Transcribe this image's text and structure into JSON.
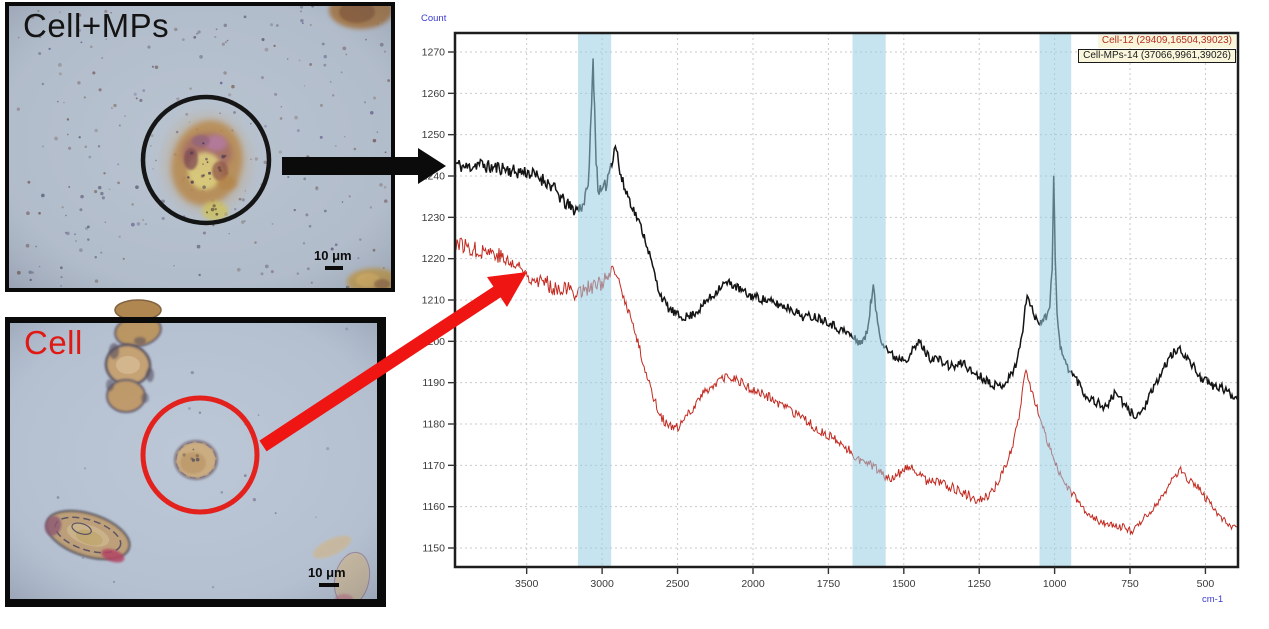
{
  "panels": {
    "cell_mps": {
      "label": "Cell+MPs",
      "scale_bar_label": "10 μm"
    },
    "cell": {
      "label": "Cell",
      "scale_bar_label": "10 μm"
    }
  },
  "chart": {
    "y_axis_title": "Count",
    "x_axis_unit": "cm-1",
    "legend": [
      {
        "label": "Cell-12 (29409,16504,39023)",
        "color": "#b43020",
        "boxed": false
      },
      {
        "label": "Cell-MPs-14 (37066,9961,39026)",
        "color": "#1a1a1a",
        "boxed": true
      }
    ],
    "legend_bg": "#faf6dc",
    "band_color": "rgba(152,206,227,0.55)",
    "accent_red": "#e41712",
    "accent_black": "#0b0b0b"
  },
  "chart_data": {
    "type": "line",
    "title": "",
    "xlabel": "cm-1",
    "ylabel": "Count",
    "x_axis": {
      "unit": "cm-1",
      "direction": "decreasing",
      "dual_scale_break": 2000,
      "xlim": [
        3975,
        392
      ]
    },
    "ylim": [
      1145,
      1275
    ],
    "x_ticks": [
      3500,
      3000,
      2500,
      2000,
      1750,
      1500,
      1250,
      1000,
      750,
      500
    ],
    "y_ticks": [
      1270,
      1260,
      1250,
      1240,
      1230,
      1220,
      1210,
      1200,
      1190,
      1180,
      1170,
      1160,
      1150
    ],
    "grid": "dashed",
    "legend_position": "top-right",
    "highlight_bands": [
      [
        3160,
        2940
      ],
      [
        1670,
        1560
      ],
      [
        1050,
        945
      ]
    ],
    "series": [
      {
        "name": "Cell-12",
        "color": "#c22a20",
        "width": 1.0,
        "noise": [
          [
            3975,
            2890,
            2.0
          ],
          [
            2889,
            1150,
            1.2
          ],
          [
            1149,
            392,
            0.9
          ]
        ],
        "points": [
          [
            3975,
            1224
          ],
          [
            3900,
            1223
          ],
          [
            3830,
            1222
          ],
          [
            3760,
            1222
          ],
          [
            3690,
            1221
          ],
          [
            3620,
            1219
          ],
          [
            3550,
            1218
          ],
          [
            3490,
            1216
          ],
          [
            3430,
            1215
          ],
          [
            3370,
            1214
          ],
          [
            3310,
            1213
          ],
          [
            3250,
            1213
          ],
          [
            3195,
            1212
          ],
          [
            3150,
            1212
          ],
          [
            3105,
            1213
          ],
          [
            3060,
            1213
          ],
          [
            3015,
            1214
          ],
          [
            2975,
            1215
          ],
          [
            2940,
            1216
          ],
          [
            2915,
            1217
          ],
          [
            2895,
            1215
          ],
          [
            2870,
            1212
          ],
          [
            2842,
            1209
          ],
          [
            2812,
            1206
          ],
          [
            2782,
            1202
          ],
          [
            2750,
            1198
          ],
          [
            2715,
            1193
          ],
          [
            2680,
            1189
          ],
          [
            2645,
            1185
          ],
          [
            2610,
            1182
          ],
          [
            2575,
            1180
          ],
          [
            2540,
            1179
          ],
          [
            2505,
            1179
          ],
          [
            2470,
            1180
          ],
          [
            2435,
            1182
          ],
          [
            2398,
            1184
          ],
          [
            2358,
            1186
          ],
          [
            2318,
            1188
          ],
          [
            2278,
            1189
          ],
          [
            2238,
            1190
          ],
          [
            2198,
            1191
          ],
          [
            2158,
            1191
          ],
          [
            2118,
            1191
          ],
          [
            2078,
            1190
          ],
          [
            2038,
            1189
          ],
          [
            2000,
            1188
          ],
          [
            1958,
            1187
          ],
          [
            1916,
            1185
          ],
          [
            1874,
            1183
          ],
          [
            1832,
            1181
          ],
          [
            1790,
            1179
          ],
          [
            1748,
            1177
          ],
          [
            1706,
            1175
          ],
          [
            1672,
            1173
          ],
          [
            1640,
            1171
          ],
          [
            1608,
            1170
          ],
          [
            1576,
            1168
          ],
          [
            1548,
            1167
          ],
          [
            1520,
            1168
          ],
          [
            1495,
            1169
          ],
          [
            1470,
            1169
          ],
          [
            1442,
            1167
          ],
          [
            1412,
            1166
          ],
          [
            1382,
            1166
          ],
          [
            1352,
            1165
          ],
          [
            1322,
            1164
          ],
          [
            1292,
            1163
          ],
          [
            1262,
            1162
          ],
          [
            1232,
            1162
          ],
          [
            1205,
            1164
          ],
          [
            1178,
            1167
          ],
          [
            1155,
            1171
          ],
          [
            1135,
            1176
          ],
          [
            1118,
            1182
          ],
          [
            1104,
            1189
          ],
          [
            1095,
            1193
          ],
          [
            1085,
            1190
          ],
          [
            1072,
            1187
          ],
          [
            1058,
            1184
          ],
          [
            1045,
            1181
          ],
          [
            1030,
            1177
          ],
          [
            1015,
            1174
          ],
          [
            1000,
            1171
          ],
          [
            985,
            1168
          ],
          [
            968,
            1166
          ],
          [
            950,
            1164
          ],
          [
            930,
            1162
          ],
          [
            910,
            1160
          ],
          [
            888,
            1158
          ],
          [
            865,
            1157
          ],
          [
            840,
            1156
          ],
          [
            815,
            1156
          ],
          [
            790,
            1155
          ],
          [
            765,
            1155
          ],
          [
            742,
            1154
          ],
          [
            718,
            1156
          ],
          [
            694,
            1158
          ],
          [
            668,
            1160
          ],
          [
            640,
            1163
          ],
          [
            615,
            1166
          ],
          [
            595,
            1168
          ],
          [
            582,
            1169
          ],
          [
            565,
            1167
          ],
          [
            548,
            1166
          ],
          [
            528,
            1165
          ],
          [
            508,
            1163
          ],
          [
            488,
            1161
          ],
          [
            468,
            1159
          ],
          [
            448,
            1157
          ],
          [
            428,
            1156
          ],
          [
            410,
            1155
          ],
          [
            392,
            1155
          ]
        ]
      },
      {
        "name": "Cell-MPs-14",
        "color": "#141414",
        "width": 1.5,
        "noise": [
          [
            3975,
            3110,
            1.7
          ],
          [
            3109,
            2840,
            1.8
          ],
          [
            2839,
            392,
            1.1
          ]
        ],
        "points": [
          [
            3975,
            1243
          ],
          [
            3900,
            1242
          ],
          [
            3820,
            1243
          ],
          [
            3740,
            1242
          ],
          [
            3660,
            1242
          ],
          [
            3580,
            1241
          ],
          [
            3500,
            1241
          ],
          [
            3440,
            1240
          ],
          [
            3380,
            1239
          ],
          [
            3320,
            1237
          ],
          [
            3260,
            1234
          ],
          [
            3200,
            1232
          ],
          [
            3160,
            1232
          ],
          [
            3130,
            1233
          ],
          [
            3100,
            1236
          ],
          [
            3085,
            1243
          ],
          [
            3070,
            1257
          ],
          [
            3060,
            1268
          ],
          [
            3050,
            1257
          ],
          [
            3040,
            1244
          ],
          [
            3028,
            1238
          ],
          [
            3012,
            1236
          ],
          [
            2995,
            1236
          ],
          [
            2975,
            1238
          ],
          [
            2955,
            1241
          ],
          [
            2935,
            1244
          ],
          [
            2912,
            1248
          ],
          [
            2898,
            1245
          ],
          [
            2882,
            1241
          ],
          [
            2862,
            1238
          ],
          [
            2835,
            1236
          ],
          [
            2805,
            1233
          ],
          [
            2770,
            1230
          ],
          [
            2735,
            1227
          ],
          [
            2700,
            1223
          ],
          [
            2665,
            1218
          ],
          [
            2630,
            1213
          ],
          [
            2595,
            1210
          ],
          [
            2560,
            1208
          ],
          [
            2525,
            1207
          ],
          [
            2490,
            1206
          ],
          [
            2455,
            1206
          ],
          [
            2420,
            1206
          ],
          [
            2385,
            1207
          ],
          [
            2345,
            1208
          ],
          [
            2305,
            1210
          ],
          [
            2265,
            1211
          ],
          [
            2225,
            1213
          ],
          [
            2185,
            1214
          ],
          [
            2145,
            1214
          ],
          [
            2105,
            1213
          ],
          [
            2065,
            1212
          ],
          [
            2025,
            1211
          ],
          [
            2000,
            1211
          ],
          [
            1960,
            1210
          ],
          [
            1920,
            1209
          ],
          [
            1875,
            1208
          ],
          [
            1835,
            1206
          ],
          [
            1795,
            1206
          ],
          [
            1755,
            1205
          ],
          [
            1715,
            1203
          ],
          [
            1685,
            1202
          ],
          [
            1655,
            1200
          ],
          [
            1635,
            1200
          ],
          [
            1622,
            1202
          ],
          [
            1610,
            1209
          ],
          [
            1601,
            1213
          ],
          [
            1590,
            1206
          ],
          [
            1578,
            1201
          ],
          [
            1562,
            1199
          ],
          [
            1545,
            1197
          ],
          [
            1525,
            1196
          ],
          [
            1505,
            1196
          ],
          [
            1488,
            1196
          ],
          [
            1468,
            1198
          ],
          [
            1447,
            1200
          ],
          [
            1433,
            1198
          ],
          [
            1415,
            1196
          ],
          [
            1395,
            1196
          ],
          [
            1372,
            1195
          ],
          [
            1348,
            1194
          ],
          [
            1325,
            1194
          ],
          [
            1302,
            1195
          ],
          [
            1282,
            1193
          ],
          [
            1258,
            1192
          ],
          [
            1235,
            1191
          ],
          [
            1210,
            1190
          ],
          [
            1188,
            1189
          ],
          [
            1165,
            1190
          ],
          [
            1142,
            1192
          ],
          [
            1122,
            1196
          ],
          [
            1105,
            1203
          ],
          [
            1091,
            1212
          ],
          [
            1078,
            1208
          ],
          [
            1065,
            1206
          ],
          [
            1052,
            1205
          ],
          [
            1040,
            1205
          ],
          [
            1028,
            1206
          ],
          [
            1016,
            1209
          ],
          [
            1008,
            1218
          ],
          [
            1003,
            1241
          ],
          [
            998,
            1220
          ],
          [
            992,
            1207
          ],
          [
            984,
            1200
          ],
          [
            972,
            1196
          ],
          [
            958,
            1194
          ],
          [
            940,
            1192
          ],
          [
            920,
            1190
          ],
          [
            900,
            1187
          ],
          [
            878,
            1186
          ],
          [
            855,
            1185
          ],
          [
            832,
            1184
          ],
          [
            812,
            1186
          ],
          [
            795,
            1188
          ],
          [
            775,
            1185
          ],
          [
            752,
            1183
          ],
          [
            728,
            1182
          ],
          [
            710,
            1183
          ],
          [
            690,
            1186
          ],
          [
            668,
            1189
          ],
          [
            648,
            1192
          ],
          [
            628,
            1195
          ],
          [
            608,
            1197
          ],
          [
            588,
            1198
          ],
          [
            570,
            1197
          ],
          [
            552,
            1195
          ],
          [
            532,
            1193
          ],
          [
            512,
            1191
          ],
          [
            492,
            1190
          ],
          [
            472,
            1189
          ],
          [
            452,
            1189
          ],
          [
            432,
            1188
          ],
          [
            412,
            1187
          ],
          [
            392,
            1186
          ]
        ]
      }
    ]
  }
}
